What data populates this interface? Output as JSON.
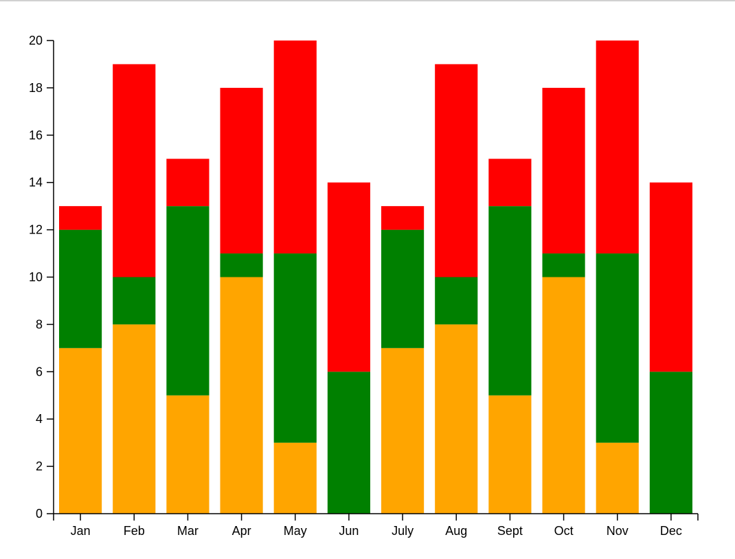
{
  "chart_data": {
    "type": "bar",
    "stacked": true,
    "categories": [
      "Jan",
      "Feb",
      "Mar",
      "Apr",
      "May",
      "Jun",
      "July",
      "Aug",
      "Sept",
      "Oct",
      "Nov",
      "Dec"
    ],
    "series": [
      {
        "color": "#FFA500",
        "values": [
          7,
          8,
          5,
          10,
          3,
          0,
          7,
          8,
          5,
          10,
          3,
          0
        ]
      },
      {
        "color": "#008000",
        "values": [
          5,
          2,
          8,
          1,
          8,
          6,
          5,
          2,
          8,
          1,
          8,
          6
        ]
      },
      {
        "color": "#FF0000",
        "values": [
          1,
          9,
          2,
          7,
          9,
          8,
          1,
          9,
          2,
          7,
          9,
          8
        ]
      }
    ],
    "ylim": [
      0,
      20
    ],
    "yticks": [
      0,
      2,
      4,
      6,
      8,
      10,
      12,
      14,
      16,
      18,
      20
    ],
    "grid": false,
    "legend": "none"
  }
}
